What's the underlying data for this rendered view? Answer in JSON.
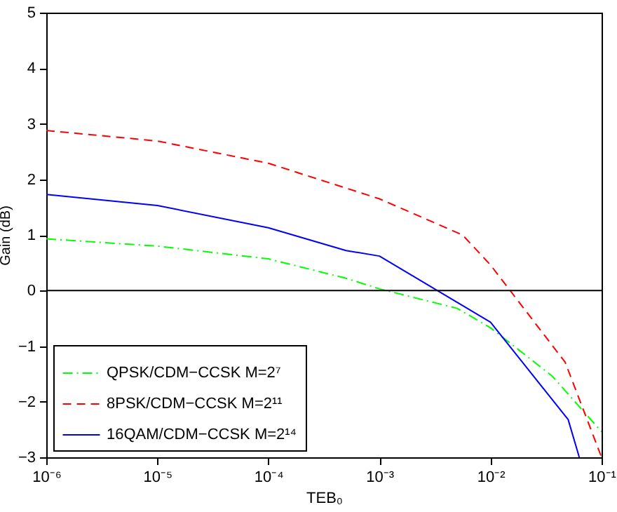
{
  "chart_data": {
    "type": "line",
    "xlabel": "TEB₀",
    "ylabel": "Gain (dB)",
    "log": "x",
    "xlim": [
      1e-06,
      0.1
    ],
    "xticks": [
      {
        "value": 1e-06,
        "label": "10⁻⁶"
      },
      {
        "value": 1e-05,
        "label": "10⁻⁵"
      },
      {
        "value": 0.0001,
        "label": "10⁻⁴"
      },
      {
        "value": 0.001,
        "label": "10⁻³"
      },
      {
        "value": 0.01,
        "label": "10⁻²"
      },
      {
        "value": 0.1,
        "label": "10⁻¹"
      }
    ],
    "ylim": [
      -3,
      5
    ],
    "yticks": [
      {
        "value": -3,
        "label": "−3"
      },
      {
        "value": -2,
        "label": "−2"
      },
      {
        "value": -1,
        "label": "−1"
      },
      0,
      1,
      2,
      3,
      4,
      5
    ],
    "grid": false,
    "legend": "bottom left",
    "marker": "none",
    "ref_lines": [
      {
        "axis": "y",
        "value": 0,
        "color": "#000000"
      }
    ],
    "series": [
      {
        "name": "QPSK/CDM−CCSK M=2⁷",
        "color": "#00ff00",
        "line_style": "dashdot",
        "x": [
          1e-06,
          1e-05,
          0.0001,
          0.0005,
          0.001,
          0.005,
          0.01,
          0.036,
          0.1
        ],
        "values": [
          0.93,
          0.8,
          0.57,
          0.22,
          0.03,
          -0.32,
          -0.67,
          -1.54,
          -2.54
        ]
      },
      {
        "name": "8PSK/CDM−CCSK M=2¹¹",
        "color": "#ff0000",
        "line_style": "dashed",
        "x": [
          1e-06,
          1e-05,
          0.0001,
          0.001,
          0.0056,
          0.01,
          0.047,
          0.1
        ],
        "values": [
          2.88,
          2.69,
          2.29,
          1.65,
          1.0,
          0.46,
          -1.29,
          -3
        ]
      },
      {
        "name": "16QAM/CDM−CCSK M=2¹⁴",
        "color": "#0000ff",
        "line_style": "solid",
        "x": [
          1e-06,
          1e-05,
          0.0001,
          0.0005,
          0.001,
          0.01,
          0.05,
          0.063
        ],
        "values": [
          1.73,
          1.53,
          1.13,
          0.72,
          0.62,
          -0.57,
          -2.32,
          -3
        ]
      }
    ]
  }
}
